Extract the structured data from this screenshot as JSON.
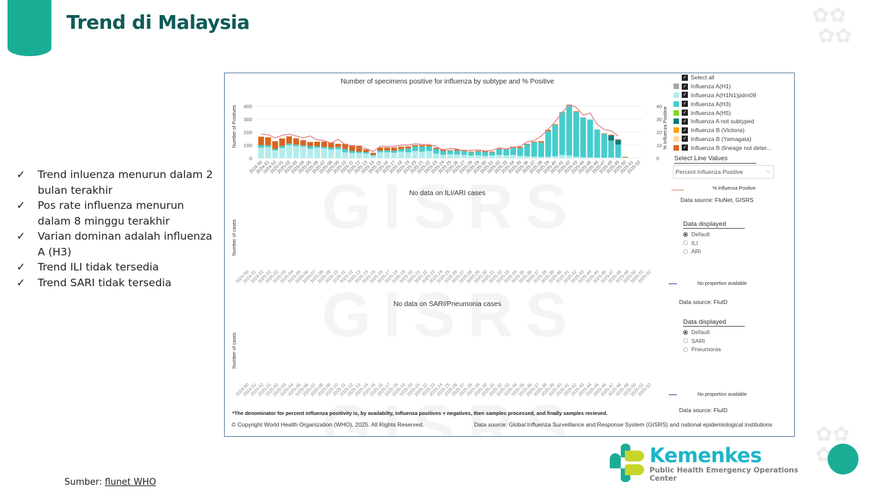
{
  "slide": {
    "title": "Trend di Malaysia",
    "bullets": [
      "Trend inluenza menurun dalam 2 bulan terakhir",
      "Pos rate influenza menurun dalam 8 minggu terakhir",
      "Varian dominan adalah influenza A (H3)",
      "Trend ILI tidak tersedia",
      "Trend SARI tidak tersedia"
    ],
    "bullet_glyph": "✓",
    "source_label": "Sumber:",
    "source_link": "flunet WHO",
    "logo": {
      "brand": "Kemenkes",
      "subtitle": "Public Health Emergency Operations Center"
    }
  },
  "dashboard": {
    "legend": {
      "select_all": "Select all",
      "items": [
        {
          "label": "Influenza A(H1)",
          "color": "#a6a6a6"
        },
        {
          "label": "Influenza A(H1N1)pdm09",
          "color": "#b3ecec"
        },
        {
          "label": "Influenza A(H3)",
          "color": "#45cccc"
        },
        {
          "label": "Influenza A(H5)",
          "color": "#7ddc1f"
        },
        {
          "label": "Influenza A not subtyped",
          "color": "#0a7c7c"
        },
        {
          "label": "Influenza B (Victoria)",
          "color": "#ffa20f"
        },
        {
          "label": "Influenza B (Yamagata)",
          "color": "#ffd9a0"
        },
        {
          "label": "Influenza B (lineage not deter...",
          "color": "#d9641e"
        }
      ]
    },
    "line_selector": {
      "title": "Select Line Values",
      "selected": "Percent Influenza Positive",
      "line_legend": "% Influenza Positive",
      "line_color": "#e08080"
    },
    "panel1_source": "Data source: FluNet, GISRS",
    "panel2": {
      "title": "No data on ILI/ARI cases",
      "ylabel": "Number of cases",
      "data_displayed": "Data displayed",
      "options": [
        "Default",
        "ILI",
        "ARI"
      ],
      "selected": "Default",
      "no_proportion": "No proportion available",
      "source": "Data source: FluID"
    },
    "panel3": {
      "title": "No data on SARI/Pneumonia cases",
      "ylabel": "Number of cases",
      "data_displayed": "Data displayed",
      "options": [
        "Default",
        "SARI",
        "Pneumonia"
      ],
      "selected": "Default",
      "no_proportion": "No proportion available",
      "source": "Data source: FluID"
    },
    "watermark": "GISRS",
    "footnote": "*The denominator for percent influenza positivity is, by availabilty, influenza positives + negatives, then samples processed, and finally samples recieved.",
    "copyright": "© Copyright World Health Organization (WHO), 2025. All Rights Reserved.",
    "data_source_bottom": "Data source: Global Influenza Surveillance and Response System (GISRS) and national epidemiological institutions"
  },
  "chart_data": {
    "type": "bar",
    "title": "Number of specimens positive for influenza by subtype and % Positive",
    "xlabel": "",
    "ylabel": "Number of Positives",
    "y2label": "% Influenza Positive",
    "ylim": [
      0,
      420
    ],
    "y2lim": [
      0,
      42
    ],
    "yticks": [
      0,
      100,
      200,
      300,
      400
    ],
    "y2ticks": [
      0,
      10,
      20,
      30,
      40
    ],
    "grid": true,
    "legend": "right",
    "categories": [
      "2024-50",
      "2024-51",
      "2024-52",
      "2025-01",
      "2025-02",
      "2025-03",
      "2025-04",
      "2025-05",
      "2025-06",
      "2025-07",
      "2025-08",
      "2025-09",
      "2025-10",
      "2025-11",
      "2025-12",
      "2025-13",
      "2025-14",
      "2025-15",
      "2025-16",
      "2025-17",
      "2025-18",
      "2025-19",
      "2025-20",
      "2025-21",
      "2025-22",
      "2025-23",
      "2025-24",
      "2025-25",
      "2025-26",
      "2025-27",
      "2025-28",
      "2025-29",
      "2025-30",
      "2025-31",
      "2025-32",
      "2025-33",
      "2025-34",
      "2025-35",
      "2025-36",
      "2025-37",
      "2025-38",
      "2025-39",
      "2025-40",
      "2025-41",
      "2025-42",
      "2025-43",
      "2025-44",
      "2025-45",
      "2025-46",
      "2025-47",
      "2025-48",
      "2025-49",
      "2025-50",
      "2025-51",
      "2025-52"
    ],
    "series": [
      {
        "name": "Influenza A(H1N1)pdm09",
        "color": "#b3ecec",
        "values": [
          80,
          85,
          60,
          78,
          100,
          92,
          88,
          72,
          80,
          75,
          65,
          70,
          45,
          40,
          40,
          35,
          18,
          45,
          45,
          42,
          50,
          45,
          55,
          50,
          55,
          35,
          25,
          30,
          28,
          25,
          20,
          22,
          18,
          20,
          25,
          22,
          25,
          18,
          15,
          12,
          10,
          12,
          15,
          25,
          20,
          10,
          8,
          6,
          5,
          5,
          5,
          5,
          5,
          null,
          null
        ]
      },
      {
        "name": "Influenza A(H3)",
        "color": "#45cccc",
        "values": [
          20,
          15,
          10,
          15,
          12,
          12,
          10,
          20,
          12,
          12,
          15,
          15,
          25,
          15,
          10,
          12,
          8,
          12,
          15,
          15,
          20,
          30,
          35,
          40,
          35,
          35,
          30,
          25,
          30,
          30,
          25,
          30,
          30,
          25,
          45,
          45,
          55,
          60,
          90,
          110,
          110,
          195,
          240,
          330,
          385,
          345,
          305,
          290,
          215,
          180,
          130,
          100,
          null,
          null,
          null
        ]
      },
      {
        "name": "Influenza A not subtyped",
        "color": "#0a7c7c",
        "values": [
          0,
          0,
          0,
          0,
          0,
          0,
          0,
          0,
          0,
          0,
          0,
          0,
          0,
          0,
          0,
          0,
          0,
          0,
          0,
          0,
          0,
          0,
          0,
          0,
          0,
          0,
          0,
          0,
          0,
          0,
          0,
          0,
          0,
          0,
          0,
          0,
          0,
          0,
          0,
          0,
          0,
          0,
          0,
          0,
          0,
          0,
          0,
          0,
          0,
          0,
          40,
          35,
          null,
          null,
          null
        ]
      },
      {
        "name": "Influenza B (lineage not deter...",
        "color": "#d9641e",
        "values": [
          65,
          60,
          60,
          58,
          55,
          48,
          40,
          32,
          34,
          40,
          40,
          25,
          40,
          45,
          45,
          20,
          15,
          25,
          22,
          25,
          18,
          15,
          10,
          10,
          10,
          10,
          15,
          5,
          10,
          8,
          5,
          5,
          8,
          5,
          5,
          5,
          8,
          8,
          5,
          5,
          10,
          10,
          5,
          0,
          5,
          5,
          0,
          0,
          0,
          5,
          5,
          5,
          5,
          null,
          null
        ]
      }
    ],
    "line": {
      "name": "% Influenza Positive",
      "color": "#e08080",
      "values": [
        18.5,
        18,
        15.5,
        17.5,
        18.5,
        17,
        15.5,
        17,
        14,
        13.5,
        11.5,
        14.5,
        10.5,
        9.5,
        7.5,
        7.5,
        5,
        9,
        9,
        9,
        10,
        10,
        11,
        10.5,
        10.5,
        9,
        6,
        7.5,
        7,
        5.5,
        6,
        6.5,
        5.5,
        6,
        8,
        7,
        8.5,
        9,
        12.5,
        13.5,
        17,
        22,
        28,
        35,
        41,
        39,
        33,
        34.5,
        26,
        22,
        21,
        17,
        null,
        null,
        null
      ]
    }
  }
}
